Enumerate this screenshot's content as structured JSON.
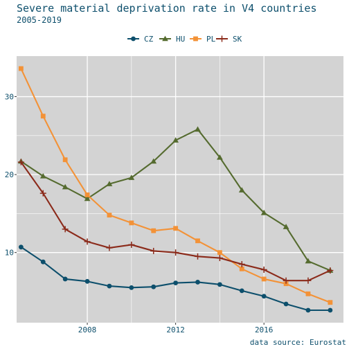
{
  "chart_data": {
    "type": "line",
    "title": "Severe material deprivation rate in V4 countries",
    "subtitle": "2005-2019",
    "caption": "data source: Eurostat",
    "xlabel": "",
    "ylabel": "",
    "x": [
      2005,
      2006,
      2007,
      2008,
      2009,
      2010,
      2011,
      2012,
      2013,
      2014,
      2015,
      2016,
      2017,
      2018,
      2019
    ],
    "xticks": [
      2008,
      2012,
      2016
    ],
    "xtick_labels": [
      "2008",
      "2012",
      "2016"
    ],
    "yticks": [
      10,
      20,
      30
    ],
    "ytick_labels": [
      "10",
      "20",
      "30"
    ],
    "xlim": [
      2004.8,
      2019.6
    ],
    "ylim": [
      1.0,
      35.2
    ],
    "grid": true,
    "legend_position": "top",
    "series": [
      {
        "name": "CZ",
        "color": "#0d4f6c",
        "marker": "circle",
        "values": [
          10.7,
          8.8,
          6.6,
          6.3,
          5.7,
          5.5,
          5.6,
          6.1,
          6.2,
          5.9,
          5.1,
          4.4,
          3.4,
          2.6,
          2.6
        ]
      },
      {
        "name": "HU",
        "color": "#556b2f",
        "marker": "triangle",
        "values": [
          21.7,
          19.8,
          18.4,
          16.9,
          18.8,
          19.6,
          21.7,
          24.4,
          25.8,
          22.2,
          18.0,
          15.1,
          13.3,
          8.9,
          7.7
        ]
      },
      {
        "name": "PL",
        "color": "#f39237",
        "marker": "square",
        "values": [
          33.6,
          27.5,
          21.9,
          17.4,
          14.8,
          13.8,
          12.8,
          13.1,
          11.5,
          10.0,
          7.9,
          6.6,
          6.0,
          4.7,
          3.6
        ]
      },
      {
        "name": "SK",
        "color": "#8b2a1a",
        "marker": "plus",
        "values": [
          21.6,
          17.6,
          13.0,
          11.4,
          10.6,
          11.0,
          10.2,
          10.0,
          9.5,
          9.3,
          8.5,
          7.8,
          6.4,
          6.4,
          7.7
        ]
      }
    ]
  },
  "colors": {
    "panel_background": "#d3d3d3",
    "grid": "#ffffff",
    "title": "#0d4f6c",
    "axis_text": "#333333"
  }
}
